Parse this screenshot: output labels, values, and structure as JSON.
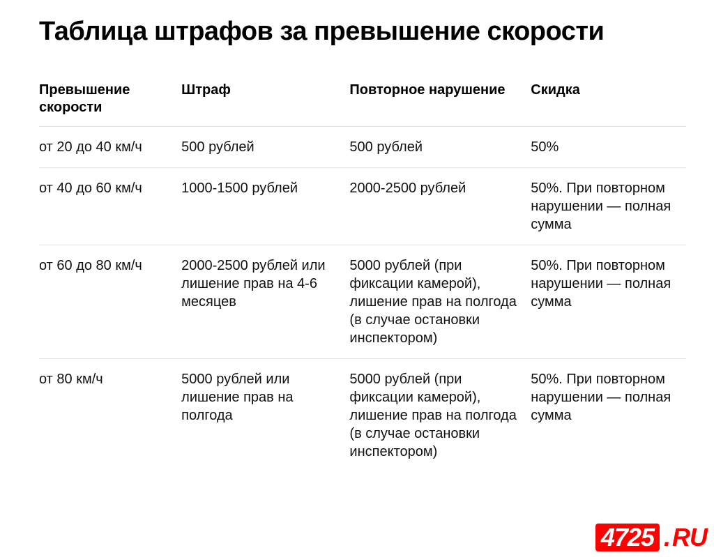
{
  "title": "Таблица штрафов за превышение скорости",
  "table": {
    "columns": [
      {
        "key": "speed",
        "label": "Превышение скорости",
        "width_pct": 22
      },
      {
        "key": "fine",
        "label": "Штраф",
        "width_pct": 26
      },
      {
        "key": "repeat",
        "label": "Повторное нарушение",
        "width_pct": 28
      },
      {
        "key": "discount",
        "label": "Скидка",
        "width_pct": 24
      }
    ],
    "rows": [
      {
        "speed": "от 20 до 40 км/ч",
        "fine": "500 рублей",
        "repeat": "500 рублей",
        "discount": "50%"
      },
      {
        "speed": "от 40 до 60 км/ч",
        "fine": "1000-1500 рублей",
        "repeat": "2000-2500 рублей",
        "discount": "50%. При повторном нарушении — полная сумма"
      },
      {
        "speed": "от 60 до 80 км/ч",
        "fine": "2000-2500 рублей или лишение прав на 4-6 месяцев",
        "repeat": "5000 рублей (при фиксации камерой), лишение прав на полгода (в случае остановки инспектором)",
        "discount": "50%. При повторном нарушении — полная сумма"
      },
      {
        "speed": "от 80 км/ч",
        "fine": "5000 рублей или лишение прав на полгода",
        "repeat": "5000 рублей (при фиксации камерой), лишение прав на полгода (в случае остановки инспектором)",
        "discount": "50%. При повторном нарушении — полная сумма"
      }
    ],
    "header_fontsize_pt": 15,
    "body_fontsize_pt": 15,
    "text_color": "#111111",
    "header_color": "#000000",
    "border_color": "#e5e5e5",
    "background_color": "#ffffff"
  },
  "title_style": {
    "fontsize_pt": 29,
    "fontweight": 800,
    "color": "#000000"
  },
  "watermark": {
    "box_text": "4725",
    "dot": ".",
    "suffix": "RU",
    "box_bg": "#ff0000",
    "box_fg": "#ffffff",
    "suffix_color": "#ff0000"
  }
}
